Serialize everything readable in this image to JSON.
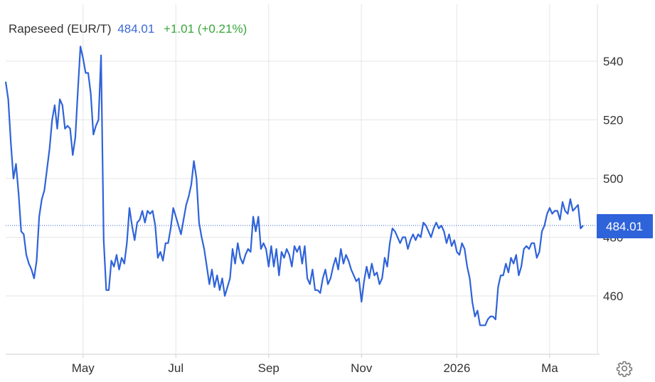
{
  "header": {
    "name": "Rapeseed (EUR/T)",
    "price": "484.01",
    "change": "+1.01",
    "change_pct": "(+0.21%)"
  },
  "colors": {
    "line": "#2f63d9",
    "price": "#3b67d6",
    "positive": "#3aa63a",
    "grid": "#e6e6e6",
    "label_bg": "#2f63d9"
  },
  "settings_icon": "gear-icon",
  "chart_data": {
    "type": "line",
    "title": "Rapeseed (EUR/T)",
    "ylim": [
      440,
      550
    ],
    "y_ticks": [
      460,
      480,
      500,
      520,
      540
    ],
    "y_tick_labels": [
      "460",
      "480",
      "500",
      "520",
      "540"
    ],
    "x_tick_labels": [
      "May",
      "Jul",
      "Sep",
      "Nov",
      "2026",
      "Ma"
    ],
    "x_tick_index": [
      30,
      66,
      102,
      138,
      175,
      211
    ],
    "grid": true,
    "last_value": 484.01,
    "last_value_label": "484.01",
    "series": [
      {
        "values": [
          533,
          527,
          512,
          500,
          505,
          495,
          482,
          481,
          474,
          471,
          469,
          466,
          472,
          487,
          493,
          496,
          503,
          510,
          520,
          525,
          517,
          527,
          525,
          517,
          518,
          517,
          508,
          514,
          530,
          545,
          541,
          536,
          536,
          529,
          515,
          518,
          520,
          542,
          479,
          462,
          462,
          472,
          470,
          474,
          469,
          473,
          471,
          478,
          490,
          484,
          479,
          485,
          486,
          489,
          485,
          489,
          488,
          489,
          484,
          473,
          475,
          472,
          478,
          478,
          483,
          490,
          487,
          484,
          481,
          486,
          491,
          494,
          498,
          506,
          500,
          485,
          480,
          476,
          470,
          464,
          469,
          463,
          467,
          462,
          466,
          460,
          463,
          466,
          476,
          471,
          478,
          473,
          471,
          474,
          476,
          475,
          487,
          482,
          487,
          476,
          478,
          476,
          470,
          477,
          470,
          476,
          467,
          475,
          473,
          476,
          474,
          470,
          477,
          475,
          477,
          471,
          477,
          466,
          464,
          469,
          462,
          462,
          461,
          466,
          469,
          464,
          466,
          470,
          473,
          469,
          476,
          471,
          474,
          472,
          469,
          467,
          465,
          466,
          458,
          465,
          470,
          466,
          471,
          467,
          468,
          464,
          466,
          473,
          470,
          478,
          483,
          482,
          480,
          478,
          480,
          480,
          476,
          479,
          481,
          479,
          481,
          480,
          485,
          484,
          482,
          480,
          483,
          485,
          483,
          484,
          482,
          478,
          481,
          477,
          479,
          475,
          474,
          478,
          476,
          470,
          466,
          458,
          453,
          455,
          450,
          450,
          450,
          452,
          453,
          453,
          452,
          463,
          467,
          467,
          471,
          468,
          473,
          471,
          474,
          467,
          470,
          476,
          477,
          476,
          478,
          478,
          473,
          475,
          482,
          484,
          488,
          490,
          488,
          489,
          489,
          486,
          492,
          489,
          488,
          493,
          489,
          490,
          491,
          483,
          484.01
        ]
      }
    ]
  }
}
